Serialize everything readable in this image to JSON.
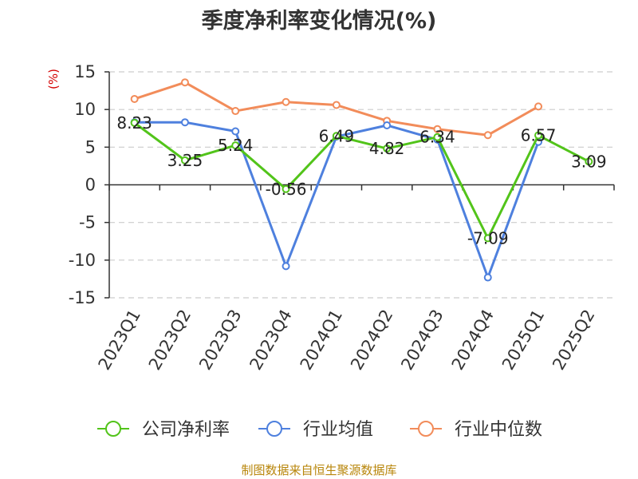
{
  "chart_data": {
    "type": "line",
    "title": "季度净利率变化情况(%)",
    "ylabel": "(%)",
    "xlabel": "",
    "categories": [
      "2023Q1",
      "2023Q2",
      "2023Q3",
      "2023Q4",
      "2024Q1",
      "2024Q2",
      "2024Q3",
      "2024Q4",
      "2025Q1",
      "2025Q2"
    ],
    "ylim": [
      -15,
      15
    ],
    "yticks": [
      -15,
      -10,
      -5,
      0,
      5,
      10,
      15
    ],
    "grid": true,
    "legend_position": "bottom",
    "series": [
      {
        "name": "公司净利率",
        "color": "#52c41a",
        "labeled": true,
        "values": [
          8.23,
          3.25,
          5.24,
          -0.56,
          6.49,
          4.82,
          6.34,
          -7.09,
          6.57,
          3.09
        ]
      },
      {
        "name": "行业均值",
        "color": "#4e80de",
        "labeled": false,
        "values": [
          8.3,
          8.3,
          7.1,
          -10.8,
          6.4,
          7.9,
          6.0,
          -12.3,
          5.7,
          null
        ]
      },
      {
        "name": "行业中位数",
        "color": "#f28c5a",
        "labeled": false,
        "values": [
          11.4,
          13.6,
          9.8,
          11.0,
          10.6,
          8.5,
          7.4,
          6.6,
          10.4,
          null
        ]
      }
    ],
    "source": "制图数据来自恒生聚源数据库"
  }
}
